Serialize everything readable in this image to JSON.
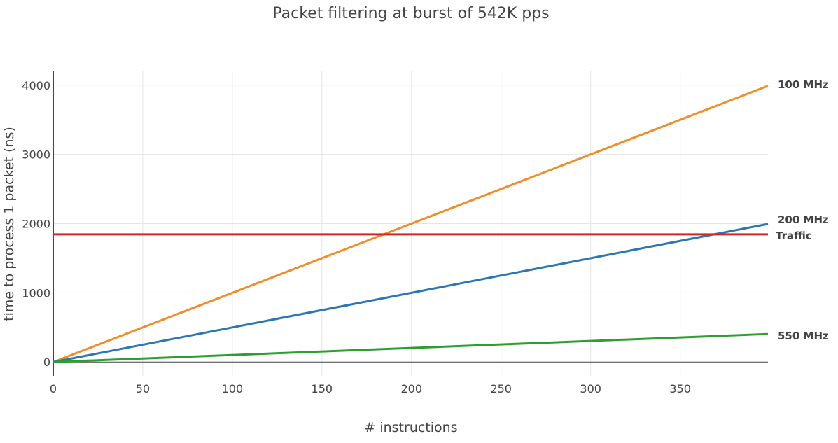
{
  "chart_data": {
    "type": "line",
    "title": "Packet filtering at burst of 542K pps",
    "xlabel": "# instructions",
    "ylabel": "time to process 1 packet (ns)",
    "xlim": [
      0,
      399
    ],
    "ylim": [
      -200,
      4200
    ],
    "x_ticks": [
      "0",
      "50",
      "100",
      "150",
      "200",
      "250",
      "300",
      "350"
    ],
    "y_ticks": [
      "0",
      "1000",
      "2000",
      "3000",
      "4000"
    ],
    "grid": true,
    "legend": "none (series labeled at right end of lines)",
    "series": [
      {
        "name": "100 MHz",
        "color": "#f28c28",
        "x": [
          0,
          399
        ],
        "y": [
          0,
          3990
        ]
      },
      {
        "name": "200 MHz",
        "color": "#2a77b4",
        "x": [
          0,
          399
        ],
        "y": [
          0,
          1995
        ]
      },
      {
        "name": "Traffic",
        "color": "#d62728",
        "x": [
          0,
          399
        ],
        "y": [
          1845,
          1845
        ]
      },
      {
        "name": "550 MHz",
        "color": "#2ca02c",
        "x": [
          0,
          399
        ],
        "y": [
          0,
          405
        ]
      }
    ]
  }
}
